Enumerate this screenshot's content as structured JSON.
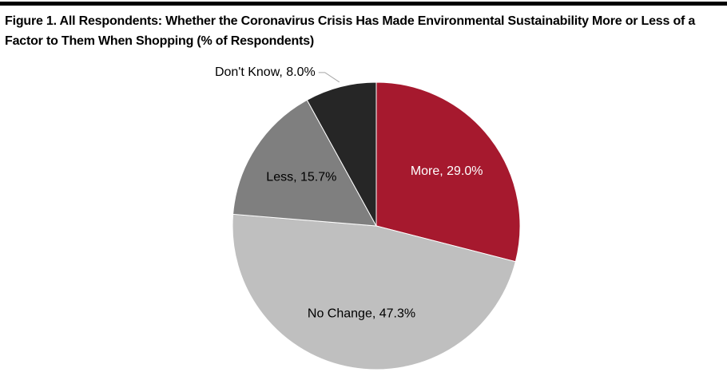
{
  "chart_data": {
    "type": "pie",
    "title": "Figure 1. All Respondents: Whether the Coronavirus Crisis Has Made Environmental Sustainability More or Less of a Factor to Them When Shopping (% of Respondents)",
    "values": [
      29.0,
      47.3,
      15.7,
      8.0
    ],
    "value_labels": [
      "More, 29.0%",
      "No Change, 47.3%",
      "Less, 15.7%",
      "Don't Know, 8.0%"
    ],
    "colors": [
      "#a6192e",
      "#bfbfbf",
      "#7f7f7f",
      "#262626"
    ]
  }
}
